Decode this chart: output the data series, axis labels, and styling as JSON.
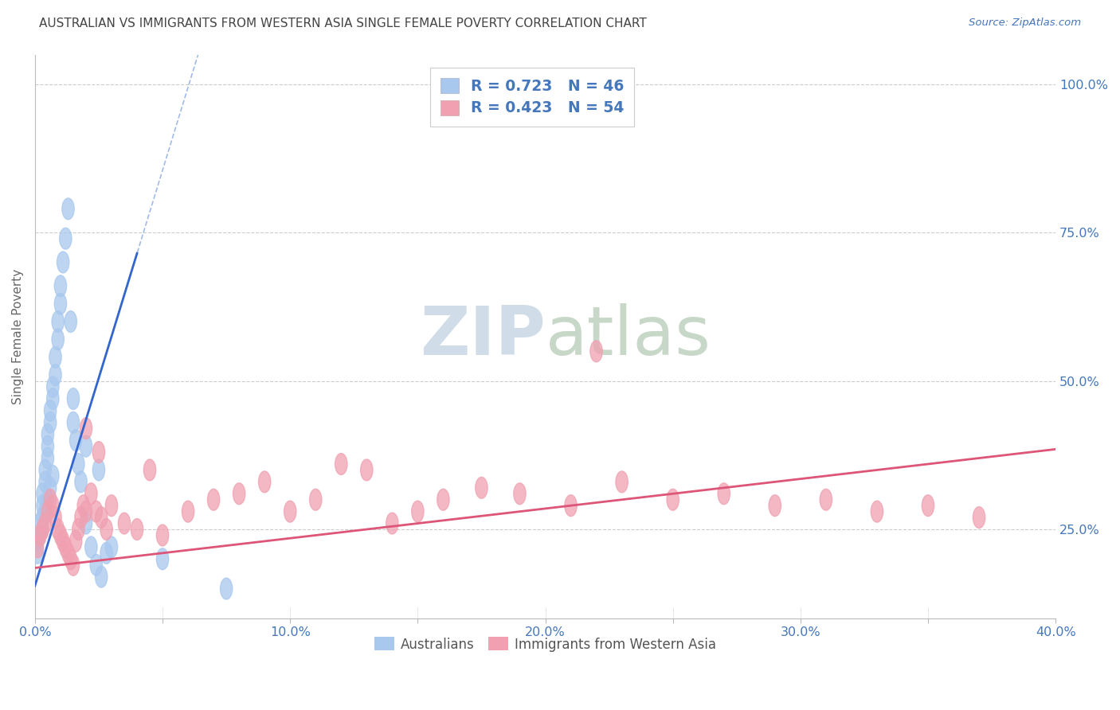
{
  "title": "AUSTRALIAN VS IMMIGRANTS FROM WESTERN ASIA SINGLE FEMALE POVERTY CORRELATION CHART",
  "source": "Source: ZipAtlas.com",
  "ylabel": "Single Female Poverty",
  "right_ytick_labels": [
    "100.0%",
    "75.0%",
    "50.0%",
    "25.0%"
  ],
  "right_ytick_values": [
    1.0,
    0.75,
    0.5,
    0.25
  ],
  "xlim": [
    0.0,
    0.4
  ],
  "ylim": [
    0.1,
    1.05
  ],
  "xtick_labels": [
    "0.0%",
    "",
    "10.0%",
    "",
    "20.0%",
    "",
    "30.0%",
    "",
    "40.0%"
  ],
  "xtick_values": [
    0.0,
    0.05,
    0.1,
    0.15,
    0.2,
    0.25,
    0.3,
    0.35,
    0.4
  ],
  "legend_label_blue": "R = 0.723   N = 46",
  "legend_label_pink": "R = 0.423   N = 54",
  "watermark": "ZIPatlas",
  "watermark_color": "#c8d8e8",
  "background_color": "#ffffff",
  "grid_color": "#cccccc",
  "axis_color": "#4477bb",
  "title_color": "#444444",
  "blue_scatter_color": "#a8c8ee",
  "pink_scatter_color": "#f0a0b0",
  "blue_line_color": "#3366cc",
  "pink_line_color": "#dd5577",
  "blue_line_intercept": 0.155,
  "blue_line_slope": 14.0,
  "pink_line_intercept": 0.185,
  "pink_line_slope": 0.5,
  "blue_x": [
    0.001,
    0.001,
    0.002,
    0.002,
    0.003,
    0.003,
    0.003,
    0.004,
    0.004,
    0.005,
    0.005,
    0.005,
    0.006,
    0.006,
    0.007,
    0.007,
    0.008,
    0.008,
    0.009,
    0.009,
    0.01,
    0.01,
    0.011,
    0.012,
    0.013,
    0.014,
    0.015,
    0.016,
    0.017,
    0.018,
    0.02,
    0.022,
    0.024,
    0.026,
    0.028,
    0.03,
    0.003,
    0.004,
    0.005,
    0.006,
    0.007,
    0.015,
    0.02,
    0.025,
    0.05,
    0.075
  ],
  "blue_y": [
    0.21,
    0.23,
    0.24,
    0.26,
    0.27,
    0.29,
    0.31,
    0.33,
    0.35,
    0.37,
    0.39,
    0.41,
    0.43,
    0.45,
    0.47,
    0.49,
    0.51,
    0.54,
    0.57,
    0.6,
    0.63,
    0.66,
    0.7,
    0.74,
    0.79,
    0.6,
    0.47,
    0.4,
    0.36,
    0.33,
    0.26,
    0.22,
    0.19,
    0.17,
    0.21,
    0.22,
    0.25,
    0.28,
    0.3,
    0.32,
    0.34,
    0.43,
    0.39,
    0.35,
    0.2,
    0.15
  ],
  "pink_x": [
    0.001,
    0.002,
    0.003,
    0.004,
    0.005,
    0.006,
    0.007,
    0.008,
    0.009,
    0.01,
    0.011,
    0.012,
    0.013,
    0.014,
    0.015,
    0.016,
    0.017,
    0.018,
    0.019,
    0.02,
    0.022,
    0.024,
    0.026,
    0.028,
    0.03,
    0.035,
    0.04,
    0.045,
    0.05,
    0.06,
    0.07,
    0.08,
    0.09,
    0.1,
    0.11,
    0.12,
    0.13,
    0.14,
    0.15,
    0.16,
    0.175,
    0.19,
    0.21,
    0.23,
    0.25,
    0.27,
    0.29,
    0.31,
    0.33,
    0.35,
    0.02,
    0.025,
    0.22,
    0.37
  ],
  "pink_y": [
    0.22,
    0.24,
    0.25,
    0.26,
    0.28,
    0.3,
    0.29,
    0.27,
    0.25,
    0.24,
    0.23,
    0.22,
    0.21,
    0.2,
    0.19,
    0.23,
    0.25,
    0.27,
    0.29,
    0.28,
    0.31,
    0.28,
    0.27,
    0.25,
    0.29,
    0.26,
    0.25,
    0.35,
    0.24,
    0.28,
    0.3,
    0.31,
    0.33,
    0.28,
    0.3,
    0.36,
    0.35,
    0.26,
    0.28,
    0.3,
    0.32,
    0.31,
    0.29,
    0.33,
    0.3,
    0.31,
    0.29,
    0.3,
    0.28,
    0.29,
    0.42,
    0.38,
    0.55,
    0.27
  ]
}
